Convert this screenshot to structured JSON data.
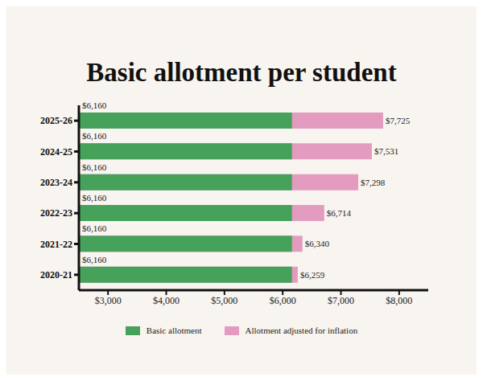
{
  "chart_data": {
    "type": "bar",
    "title": "Basic allotment per student",
    "orientation": "horizontal",
    "categories": [
      "2025-26",
      "2024-25",
      "2023-24",
      "2022-23",
      "2021-22",
      "2020-21"
    ],
    "series": [
      {
        "name": "Basic allotment",
        "color": "#46a15b",
        "values": [
          6160,
          6160,
          6160,
          6160,
          6160,
          6160
        ],
        "value_labels": [
          "$6,160",
          "$6,160",
          "$6,160",
          "$6,160",
          "$6,160",
          "$6,160"
        ]
      },
      {
        "name": "Allotment adjusted for inflation",
        "color": "#e39cbf",
        "values": [
          7725,
          7531,
          7298,
          6714,
          6340,
          6259
        ],
        "value_labels": [
          "$7,725",
          "$7,531",
          "$7,298",
          "$6,714",
          "$6,340",
          "$6,259"
        ]
      }
    ],
    "xlim": [
      2500,
      8500
    ],
    "xticks": [
      {
        "value": 3000,
        "label": "$3,000"
      },
      {
        "value": 4000,
        "label": "$4,000"
      },
      {
        "value": 5000,
        "label": "$5,000"
      },
      {
        "value": 6000,
        "label": "$6,000"
      },
      {
        "value": 7000,
        "label": "$7,000"
      },
      {
        "value": 8000,
        "label": "$8,000"
      }
    ],
    "grid": false,
    "legend": "bottom",
    "data_labels": true
  }
}
